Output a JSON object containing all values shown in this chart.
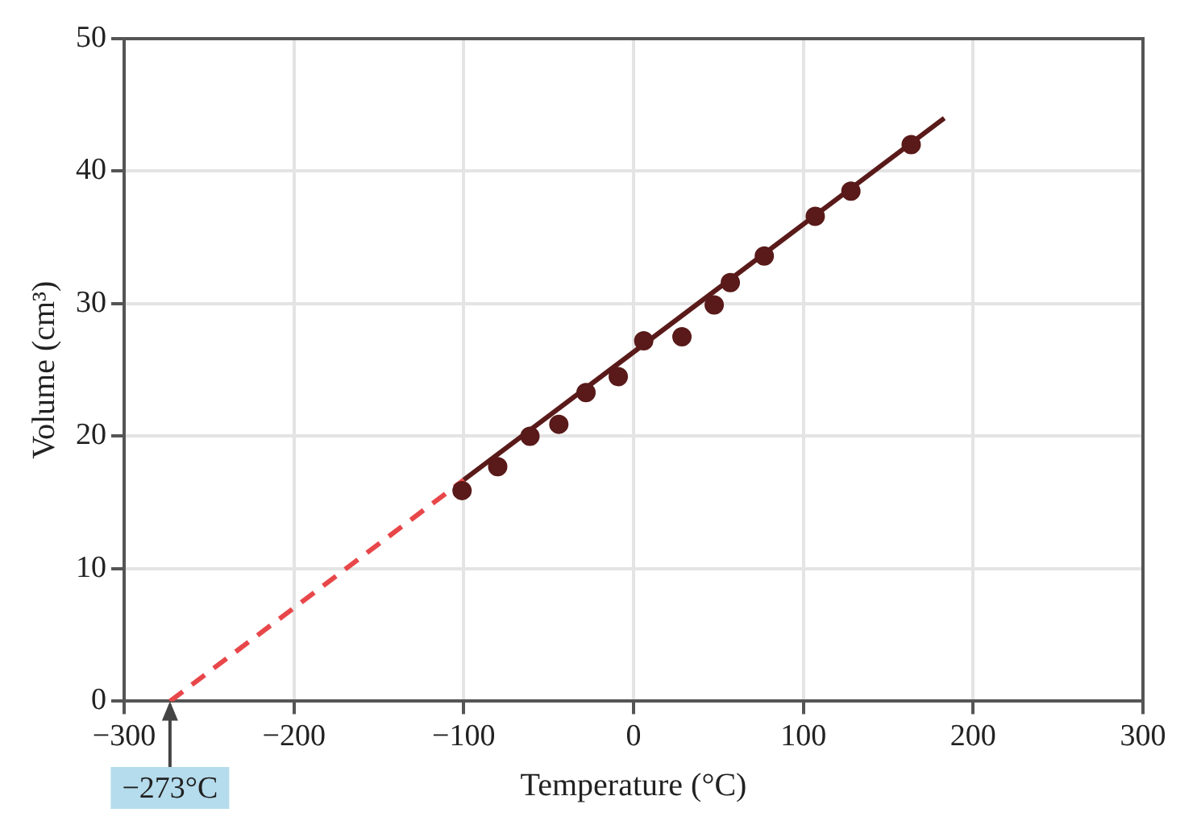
{
  "chart_data": {
    "type": "scatter",
    "xlabel": "Temperature (°C)",
    "ylabel": "Volume (cm³)",
    "xlim": [
      -300,
      300
    ],
    "xticks": [
      -300,
      -200,
      -100,
      0,
      100,
      200,
      300
    ],
    "ylim": [
      0,
      50
    ],
    "yticks": [
      0,
      10,
      20,
      30,
      40,
      50
    ],
    "grid": true,
    "legend": false,
    "series": [
      {
        "type": "scatter",
        "color": "#5a1a1a",
        "marker": "circle",
        "x": [
          -101,
          -80,
          -61,
          -44,
          -28,
          -9,
          6,
          28.5,
          47.5,
          57,
          77,
          107,
          128,
          163.5
        ],
        "values": [
          15.9,
          17.7,
          20.0,
          20.9,
          23.3,
          24.5,
          27.2,
          27.5,
          29.9,
          31.6,
          33.6,
          36.6,
          38.5,
          42.0
        ]
      },
      {
        "type": "line",
        "color": "#5a1a1a",
        "line_style": "solid",
        "x": [
          -100,
          183
        ],
        "values": [
          16.7,
          44
        ]
      },
      {
        "type": "line",
        "color": "#e8474a",
        "line_style": "dashed",
        "x": [
          -273,
          -100
        ],
        "values": [
          0,
          16.7
        ]
      }
    ],
    "annotations": [
      {
        "text": "−273°C",
        "x": -273,
        "y": 0
      }
    ]
  }
}
